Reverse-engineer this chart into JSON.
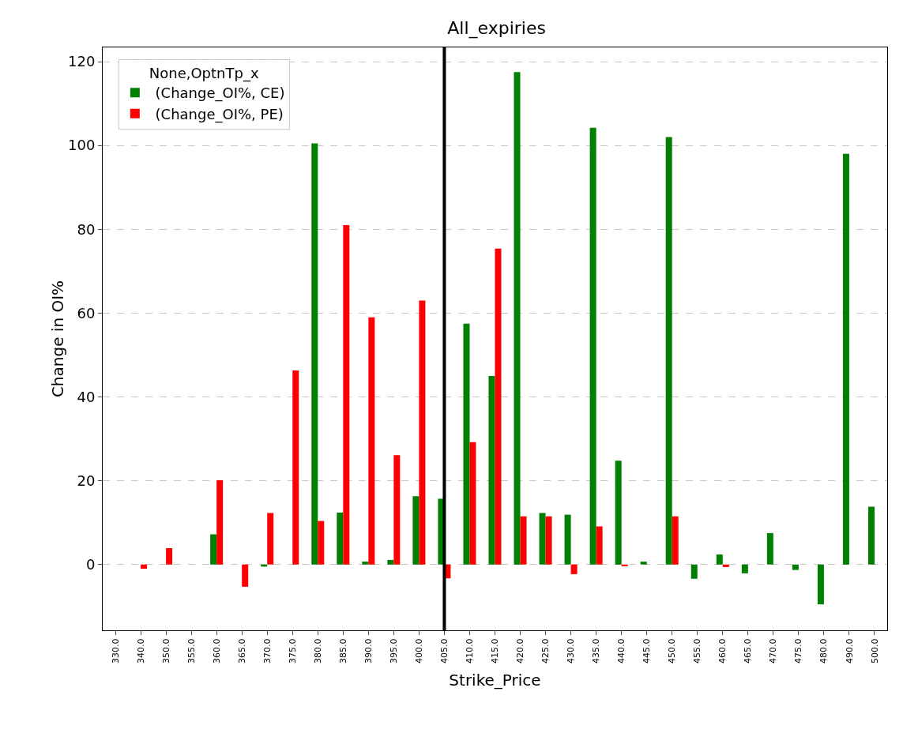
{
  "chart_data": {
    "type": "bar",
    "title": "All_expiries",
    "xlabel": "Strike_Price",
    "ylabel": "Change in OI%",
    "legend_title": "None,OptnTp_x",
    "categories": [
      "330.0",
      "340.0",
      "350.0",
      "355.0",
      "360.0",
      "365.0",
      "370.0",
      "375.0",
      "380.0",
      "385.0",
      "390.0",
      "395.0",
      "400.0",
      "405.0",
      "410.0",
      "415.0",
      "420.0",
      "425.0",
      "430.0",
      "435.0",
      "440.0",
      "445.0",
      "450.0",
      "455.0",
      "460.0",
      "465.0",
      "470.0",
      "475.0",
      "480.0",
      "490.0",
      "500.0"
    ],
    "series": [
      {
        "name": " (Change_OI%, CE)",
        "color": "#008000",
        "values": [
          0,
          0,
          0,
          0,
          7.2,
          0,
          -0.5,
          0,
          100.5,
          12.4,
          0.7,
          1.1,
          16.3,
          15.7,
          57.5,
          45,
          117.5,
          12.3,
          11.9,
          104.2,
          24.8,
          0.7,
          102,
          -3.4,
          2.4,
          -2.1,
          7.5,
          -1.3,
          -9.5,
          98,
          13.8
        ]
      },
      {
        "name": " (Change_OI%, PE)",
        "color": "#ff0000",
        "values": [
          0,
          -1,
          3.9,
          0,
          20.1,
          -5.3,
          12.3,
          46.3,
          10.4,
          81,
          59,
          26.1,
          63,
          -3.3,
          29.2,
          75.4,
          11.5,
          11.5,
          -2.3,
          9.1,
          -0.4,
          0,
          11.5,
          0,
          -0.6,
          0,
          0,
          0,
          0,
          0,
          0
        ]
      }
    ],
    "ylim": [
      -15.7,
      123.4
    ],
    "yticks": [
      0,
      20,
      40,
      60,
      80,
      100,
      120
    ],
    "grid": "y",
    "legend": "top left",
    "ref_lines": [
      {
        "axis": "x",
        "value": "405.0",
        "color": "#000000"
      }
    ]
  }
}
